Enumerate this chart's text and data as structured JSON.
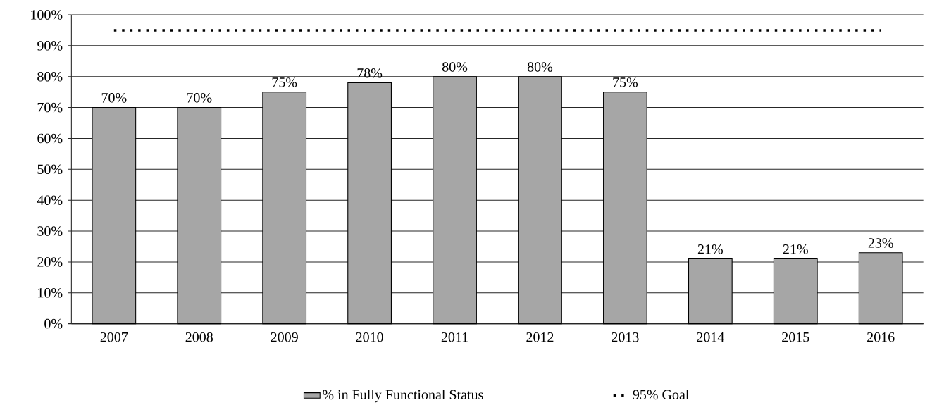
{
  "chart_data": {
    "type": "bar",
    "categories": [
      "2007",
      "2008",
      "2009",
      "2010",
      "2011",
      "2012",
      "2013",
      "2014",
      "2015",
      "2016"
    ],
    "series": [
      {
        "name": "% in Fully Functional Status",
        "color": "#a6a6a6",
        "values": [
          70,
          70,
          75,
          78,
          80,
          80,
          75,
          21,
          21,
          23
        ],
        "value_labels": [
          "70%",
          "70%",
          "75%",
          "78%",
          "80%",
          "80%",
          "75%",
          "21%",
          "21%",
          "23%"
        ]
      },
      {
        "name": "95% Goal",
        "type": "line",
        "color": "#000000",
        "line_style": "dotted",
        "marker": "none",
        "values": [
          95,
          95,
          95,
          95,
          95,
          95,
          95,
          95,
          95,
          95
        ]
      }
    ],
    "ylim": [
      0,
      100
    ],
    "yticks": [
      {
        "value": 0,
        "label": "0%"
      },
      {
        "value": 10,
        "label": "10%"
      },
      {
        "value": 20,
        "label": "20%"
      },
      {
        "value": 30,
        "label": "30%"
      },
      {
        "value": 40,
        "label": "40%"
      },
      {
        "value": 50,
        "label": "50%"
      },
      {
        "value": 60,
        "label": "60%"
      },
      {
        "value": 70,
        "label": "70%"
      },
      {
        "value": 80,
        "label": "80%"
      },
      {
        "value": 90,
        "label": "90%"
      },
      {
        "value": 100,
        "label": "100%"
      }
    ],
    "grid": "y",
    "legend": "bottom"
  }
}
